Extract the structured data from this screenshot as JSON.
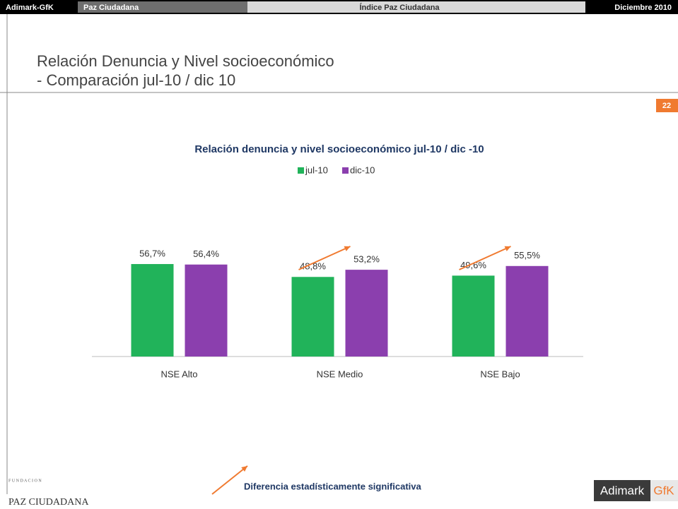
{
  "header": {
    "brand": "Adimark-GfK",
    "section": "Paz Ciudadana",
    "center": "Índice Paz Ciudadana",
    "date": "Diciembre 2010"
  },
  "slide": {
    "title_line1": "Relación Denuncia y Nivel socioeconómico",
    "title_line2": "- Comparación jul-10 / dic 10",
    "page": "22"
  },
  "chart_data": {
    "type": "bar",
    "title": "Relación denuncia y nivel socioeconómico jul-10 / dic -10",
    "categories": [
      "NSE Alto",
      "NSE Medio",
      "NSE Bajo"
    ],
    "series": [
      {
        "name": "jul-10",
        "color": "#21b35a",
        "values": [
          56.7,
          48.8,
          49.6
        ],
        "value_labels": [
          "56,7%",
          "48,8%",
          "49,6%"
        ]
      },
      {
        "name": "dic-10",
        "color": "#8b3fae",
        "values": [
          56.4,
          53.2,
          55.5
        ],
        "value_labels": [
          "56,4%",
          "53,2%",
          "55,5%"
        ]
      }
    ],
    "significant": [
      false,
      true,
      true
    ],
    "arrow_color": "#f07a30",
    "legend": "top"
  },
  "footer": {
    "note": "Diferencia estadísticamente significativa",
    "logo_left_top": "F U N D A C I O N",
    "logo_left": "PAZ CIUDADANA",
    "logo_right_a": "Adimark",
    "logo_right_b": "GfK"
  }
}
